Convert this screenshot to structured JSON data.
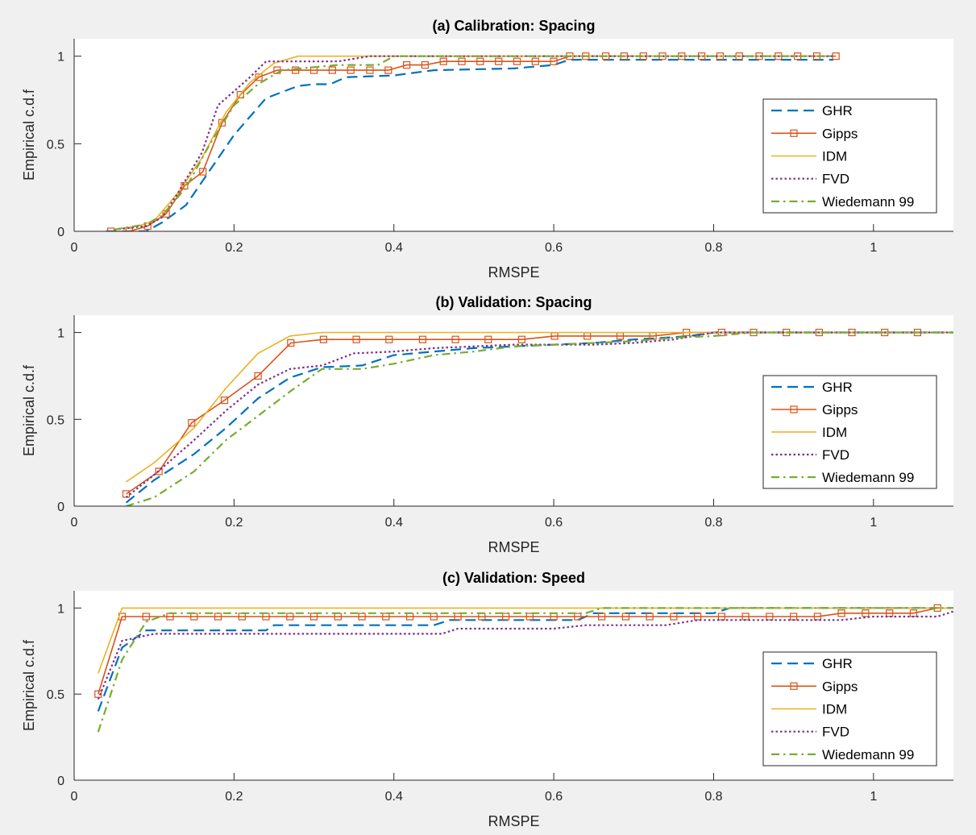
{
  "colors": {
    "GHR": "#0072BD",
    "Gipps": "#D95319",
    "IDM": "#EDB120",
    "FVD": "#7E2F8E",
    "Wiedemann 99": "#77AC30",
    "background": "#f0f0f0",
    "axes_bg": "#ffffff"
  },
  "chart_data": [
    {
      "type": "line",
      "title": "(a) Calibration: Spacing",
      "xlabel": "RMSPE",
      "ylabel": "Empirical c.d.f",
      "xlim": [
        0,
        1.1
      ],
      "ylim": [
        0,
        1.1
      ],
      "xticks": [
        0,
        0.2,
        0.4,
        0.6,
        0.8,
        1
      ],
      "xtick_labels": [
        "0",
        "0.2",
        "0.4",
        "0.6",
        "0.8",
        "1"
      ],
      "yticks": [
        0,
        0.5,
        1
      ],
      "ytick_labels": [
        "0",
        "0.5",
        "1"
      ],
      "grid": false,
      "legend": "right",
      "legend_items": [
        {
          "label": "GHR",
          "style": "dashed",
          "marker": false
        },
        {
          "label": "Gipps",
          "style": "solid",
          "marker": true
        },
        {
          "label": "IDM",
          "style": "solid",
          "marker": false
        },
        {
          "label": "FVD",
          "style": "dotted",
          "marker": false
        },
        {
          "label": "Wiedemann 99",
          "style": "dashdot",
          "marker": false
        }
      ],
      "series": [
        {
          "name": "GHR",
          "style": "dashed",
          "marker": false,
          "x": [
            0.04,
            0.09,
            0.11,
            0.14,
            0.17,
            0.2,
            0.24,
            0.28,
            0.3,
            0.32,
            0.34,
            0.4,
            0.45,
            0.55,
            0.6,
            0.62,
            0.95
          ],
          "y": [
            0,
            0,
            0.05,
            0.15,
            0.35,
            0.55,
            0.76,
            0.83,
            0.84,
            0.84,
            0.88,
            0.89,
            0.92,
            0.93,
            0.95,
            0.98,
            0.98
          ]
        },
        {
          "name": "Gipps",
          "style": "solid",
          "marker": true,
          "x": [
            0.046,
            0.069,
            0.092,
            0.115,
            0.138,
            0.161,
            0.185,
            0.208,
            0.231,
            0.254,
            0.277,
            0.3,
            0.323,
            0.346,
            0.37,
            0.393,
            0.416,
            0.439,
            0.462,
            0.485,
            0.508,
            0.531,
            0.554,
            0.577,
            0.6,
            0.62,
            0.64,
            0.665,
            0.688,
            0.712,
            0.736,
            0.76,
            0.785,
            0.808,
            0.832,
            0.857,
            0.881,
            0.905,
            0.929,
            0.953
          ],
          "y": [
            0,
            0,
            0.03,
            0.1,
            0.26,
            0.34,
            0.62,
            0.78,
            0.88,
            0.92,
            0.92,
            0.92,
            0.92,
            0.92,
            0.92,
            0.92,
            0.95,
            0.95,
            0.97,
            0.97,
            0.97,
            0.97,
            0.97,
            0.97,
            0.97,
            1,
            1,
            1,
            1,
            1,
            1,
            1,
            1,
            1,
            1,
            1,
            1,
            1,
            1,
            1
          ]
        },
        {
          "name": "IDM",
          "style": "solid",
          "marker": false,
          "x": [
            0.05,
            0.08,
            0.1,
            0.13,
            0.16,
            0.19,
            0.22,
            0.25,
            0.28,
            0.3,
            0.95
          ],
          "y": [
            0.01,
            0.03,
            0.06,
            0.22,
            0.42,
            0.68,
            0.85,
            0.96,
            1,
            1,
            1
          ]
        },
        {
          "name": "FVD",
          "style": "dotted",
          "marker": false,
          "x": [
            0.05,
            0.09,
            0.11,
            0.13,
            0.16,
            0.18,
            0.2,
            0.22,
            0.24,
            0.26,
            0.33,
            0.37,
            0.95
          ],
          "y": [
            0.01,
            0.03,
            0.08,
            0.22,
            0.45,
            0.72,
            0.8,
            0.88,
            0.97,
            0.97,
            0.97,
            1,
            1
          ]
        },
        {
          "name": "Wiedemann 99",
          "style": "dashdot",
          "marker": false,
          "x": [
            0.05,
            0.09,
            0.11,
            0.14,
            0.17,
            0.2,
            0.23,
            0.26,
            0.33,
            0.38,
            0.4,
            0.95
          ],
          "y": [
            0.01,
            0.04,
            0.09,
            0.25,
            0.5,
            0.72,
            0.84,
            0.92,
            0.95,
            0.95,
            1,
            1
          ]
        }
      ]
    },
    {
      "type": "line",
      "title": "(b) Validation: Spacing",
      "xlabel": "RMSPE",
      "ylabel": "Empirical c.d.f",
      "xlim": [
        0,
        1.1
      ],
      "ylim": [
        0,
        1.1
      ],
      "xticks": [
        0,
        0.2,
        0.4,
        0.6,
        0.8,
        1
      ],
      "xtick_labels": [
        "0",
        "0.2",
        "0.4",
        "0.6",
        "0.8",
        "1"
      ],
      "yticks": [
        0,
        0.5,
        1
      ],
      "ytick_labels": [
        "0",
        "0.5",
        "1"
      ],
      "grid": false,
      "legend": "right",
      "legend_items": [
        {
          "label": "GHR",
          "style": "dashed",
          "marker": false
        },
        {
          "label": "Gipps",
          "style": "solid",
          "marker": true
        },
        {
          "label": "IDM",
          "style": "solid",
          "marker": false
        },
        {
          "label": "FVD",
          "style": "dotted",
          "marker": false
        },
        {
          "label": "Wiedemann 99",
          "style": "dashdot",
          "marker": false
        }
      ],
      "series": [
        {
          "name": "GHR",
          "style": "dashed",
          "marker": false,
          "x": [
            0.065,
            0.1,
            0.15,
            0.19,
            0.23,
            0.27,
            0.31,
            0.36,
            0.4,
            0.45,
            0.5,
            0.55,
            0.6,
            0.65,
            0.7,
            0.74,
            0.77,
            0.8,
            0.85,
            1.1
          ],
          "y": [
            0.02,
            0.15,
            0.3,
            0.45,
            0.62,
            0.74,
            0.8,
            0.81,
            0.87,
            0.89,
            0.91,
            0.92,
            0.93,
            0.94,
            0.96,
            0.97,
            0.98,
            1,
            1,
            1
          ]
        },
        {
          "name": "Gipps",
          "style": "solid",
          "marker": true,
          "x": [
            0.065,
            0.106,
            0.147,
            0.188,
            0.23,
            0.271,
            0.312,
            0.353,
            0.394,
            0.436,
            0.477,
            0.518,
            0.56,
            0.601,
            0.642,
            0.683,
            0.724,
            0.766,
            0.81,
            0.85,
            0.891,
            0.932,
            0.973,
            1.014,
            1.055
          ],
          "y": [
            0.07,
            0.2,
            0.48,
            0.61,
            0.75,
            0.94,
            0.96,
            0.96,
            0.96,
            0.96,
            0.96,
            0.96,
            0.96,
            0.98,
            0.98,
            0.98,
            0.98,
            1,
            1,
            1,
            1,
            1,
            1,
            1,
            1
          ]
        },
        {
          "name": "IDM",
          "style": "solid",
          "marker": false,
          "x": [
            0.065,
            0.1,
            0.15,
            0.19,
            0.23,
            0.27,
            0.31,
            0.8,
            1.1
          ],
          "y": [
            0.14,
            0.25,
            0.45,
            0.68,
            0.88,
            0.98,
            1,
            1,
            1
          ]
        },
        {
          "name": "FVD",
          "style": "dotted",
          "marker": false,
          "x": [
            0.065,
            0.1,
            0.15,
            0.19,
            0.23,
            0.27,
            0.31,
            0.35,
            0.4,
            0.45,
            0.5,
            0.55,
            0.6,
            0.65,
            0.7,
            0.75,
            0.8,
            1.1
          ],
          "y": [
            0.05,
            0.18,
            0.38,
            0.55,
            0.7,
            0.79,
            0.81,
            0.88,
            0.89,
            0.91,
            0.92,
            0.93,
            0.93,
            0.93,
            0.94,
            0.96,
            1,
            1
          ]
        },
        {
          "name": "Wiedemann 99",
          "style": "dashdot",
          "marker": false,
          "x": [
            0.065,
            0.1,
            0.15,
            0.19,
            0.23,
            0.27,
            0.31,
            0.36,
            0.4,
            0.45,
            0.5,
            0.55,
            0.6,
            0.65,
            0.7,
            0.75,
            0.8,
            0.85,
            1.1
          ],
          "y": [
            0,
            0.05,
            0.2,
            0.38,
            0.52,
            0.66,
            0.79,
            0.79,
            0.82,
            0.87,
            0.89,
            0.92,
            0.93,
            0.94,
            0.95,
            0.97,
            0.98,
            1,
            1
          ]
        }
      ]
    },
    {
      "type": "line",
      "title": "(c) Validation: Speed",
      "xlabel": "RMSPE",
      "ylabel": "Empirical c.d.f",
      "xlim": [
        0,
        1.1
      ],
      "ylim": [
        0,
        1.1
      ],
      "xticks": [
        0,
        0.2,
        0.4,
        0.6,
        0.8,
        1
      ],
      "xtick_labels": [
        "0",
        "0.2",
        "0.4",
        "0.6",
        "0.8",
        "1"
      ],
      "yticks": [
        0,
        0.5,
        1
      ],
      "ytick_labels": [
        "0",
        "0.5",
        "1"
      ],
      "grid": false,
      "legend": "right",
      "legend_items": [
        {
          "label": "GHR",
          "style": "dashed",
          "marker": false
        },
        {
          "label": "Gipps",
          "style": "solid",
          "marker": true
        },
        {
          "label": "IDM",
          "style": "solid",
          "marker": false
        },
        {
          "label": "FVD",
          "style": "dotted",
          "marker": false
        },
        {
          "label": "Wiedemann 99",
          "style": "dashdot",
          "marker": false
        }
      ],
      "series": [
        {
          "name": "GHR",
          "style": "dashed",
          "marker": false,
          "x": [
            0.03,
            0.06,
            0.09,
            0.24,
            0.25,
            0.45,
            0.47,
            0.63,
            0.65,
            0.8,
            0.82,
            1.1
          ],
          "y": [
            0.4,
            0.77,
            0.87,
            0.87,
            0.9,
            0.9,
            0.93,
            0.93,
            0.97,
            0.97,
            1,
            1
          ]
        },
        {
          "name": "Gipps",
          "style": "solid",
          "marker": true,
          "x": [
            0.03,
            0.06,
            0.09,
            0.12,
            0.15,
            0.18,
            0.21,
            0.24,
            0.27,
            0.3,
            0.33,
            0.36,
            0.39,
            0.42,
            0.45,
            0.48,
            0.51,
            0.54,
            0.57,
            0.6,
            0.63,
            0.66,
            0.69,
            0.72,
            0.75,
            0.78,
            0.81,
            0.84,
            0.87,
            0.9,
            0.93,
            0.96,
            0.99,
            1.02,
            1.05,
            1.08
          ],
          "y": [
            0.5,
            0.95,
            0.95,
            0.95,
            0.95,
            0.95,
            0.95,
            0.95,
            0.95,
            0.95,
            0.95,
            0.95,
            0.95,
            0.95,
            0.95,
            0.95,
            0.95,
            0.95,
            0.95,
            0.95,
            0.95,
            0.95,
            0.95,
            0.95,
            0.95,
            0.95,
            0.95,
            0.95,
            0.95,
            0.95,
            0.95,
            0.97,
            0.97,
            0.97,
            0.97,
            1
          ]
        },
        {
          "name": "IDM",
          "style": "solid",
          "marker": false,
          "x": [
            0.03,
            0.06,
            1.1
          ],
          "y": [
            0.62,
            1,
            1
          ]
        },
        {
          "name": "FVD",
          "style": "dotted",
          "marker": false,
          "x": [
            0.03,
            0.06,
            0.1,
            0.2,
            0.46,
            0.48,
            0.6,
            0.64,
            0.74,
            0.78,
            0.96,
            1.0,
            1.08,
            1.1
          ],
          "y": [
            0.47,
            0.81,
            0.85,
            0.85,
            0.85,
            0.88,
            0.88,
            0.9,
            0.9,
            0.93,
            0.93,
            0.95,
            0.95,
            0.98
          ]
        },
        {
          "name": "Wiedemann 99",
          "style": "dashdot",
          "marker": false,
          "x": [
            0.03,
            0.06,
            0.09,
            0.12,
            0.64,
            0.66,
            1.1
          ],
          "y": [
            0.28,
            0.7,
            0.92,
            0.97,
            0.97,
            1,
            1
          ]
        }
      ]
    }
  ]
}
